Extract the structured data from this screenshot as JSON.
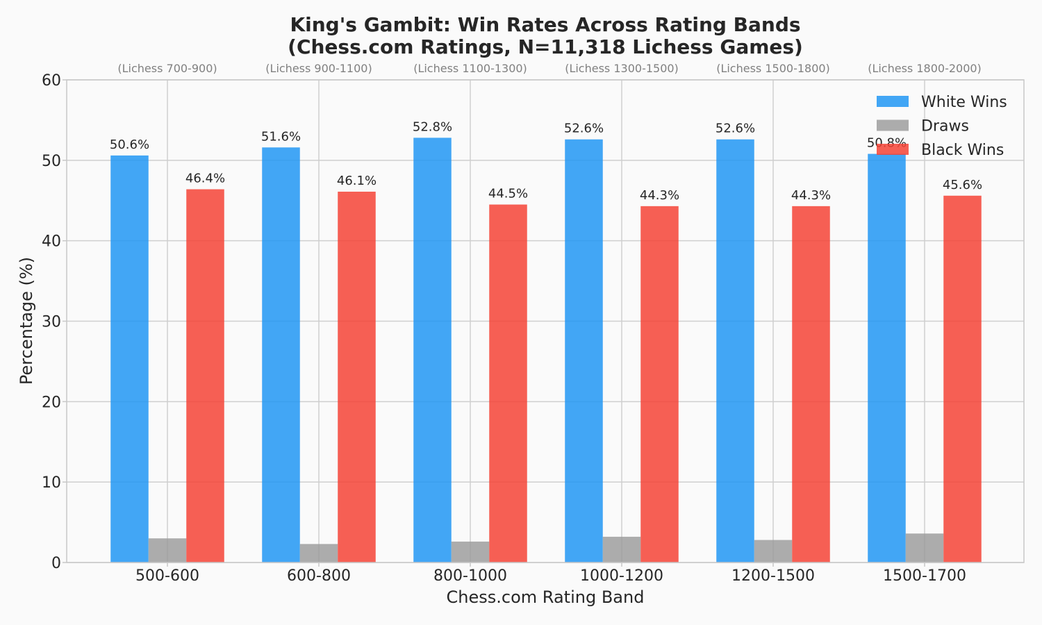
{
  "chart_data": {
    "type": "bar",
    "title_lines": [
      "King's Gambit: Win Rates Across Rating Bands",
      "(Chess.com Ratings, N=11,318 Lichess Games)"
    ],
    "xlabel": "Chess.com Rating Band",
    "ylabel": "Percentage (%)",
    "categories": [
      "500-600",
      "600-800",
      "800-1000",
      "1000-1200",
      "1200-1500",
      "1500-1700"
    ],
    "secondary_labels": [
      "(Lichess 700-900)",
      "(Lichess 900-1100)",
      "(Lichess 1100-1300)",
      "(Lichess 1300-1500)",
      "(Lichess 1500-1800)",
      "(Lichess 1800-2000)"
    ],
    "ylim": [
      0,
      60
    ],
    "yticks": [
      0,
      10,
      20,
      30,
      40,
      50,
      60
    ],
    "grid": true,
    "legend_position": "top-right",
    "series": [
      {
        "name": "White Wins",
        "color": "#2196f3",
        "values": [
          50.6,
          51.6,
          52.8,
          52.6,
          52.6,
          50.8
        ],
        "labels": [
          "50.6%",
          "51.6%",
          "52.8%",
          "52.6%",
          "52.6%",
          "50.8%"
        ]
      },
      {
        "name": "Draws",
        "color": "#9e9e9e",
        "values": [
          3.0,
          2.3,
          2.6,
          3.2,
          2.8,
          3.6
        ],
        "labels": []
      },
      {
        "name": "Black Wins",
        "color": "#f44336",
        "values": [
          46.4,
          46.1,
          44.5,
          44.3,
          44.3,
          45.6
        ],
        "labels": [
          "46.4%",
          "46.1%",
          "44.5%",
          "44.3%",
          "44.3%",
          "45.6%"
        ]
      }
    ]
  }
}
